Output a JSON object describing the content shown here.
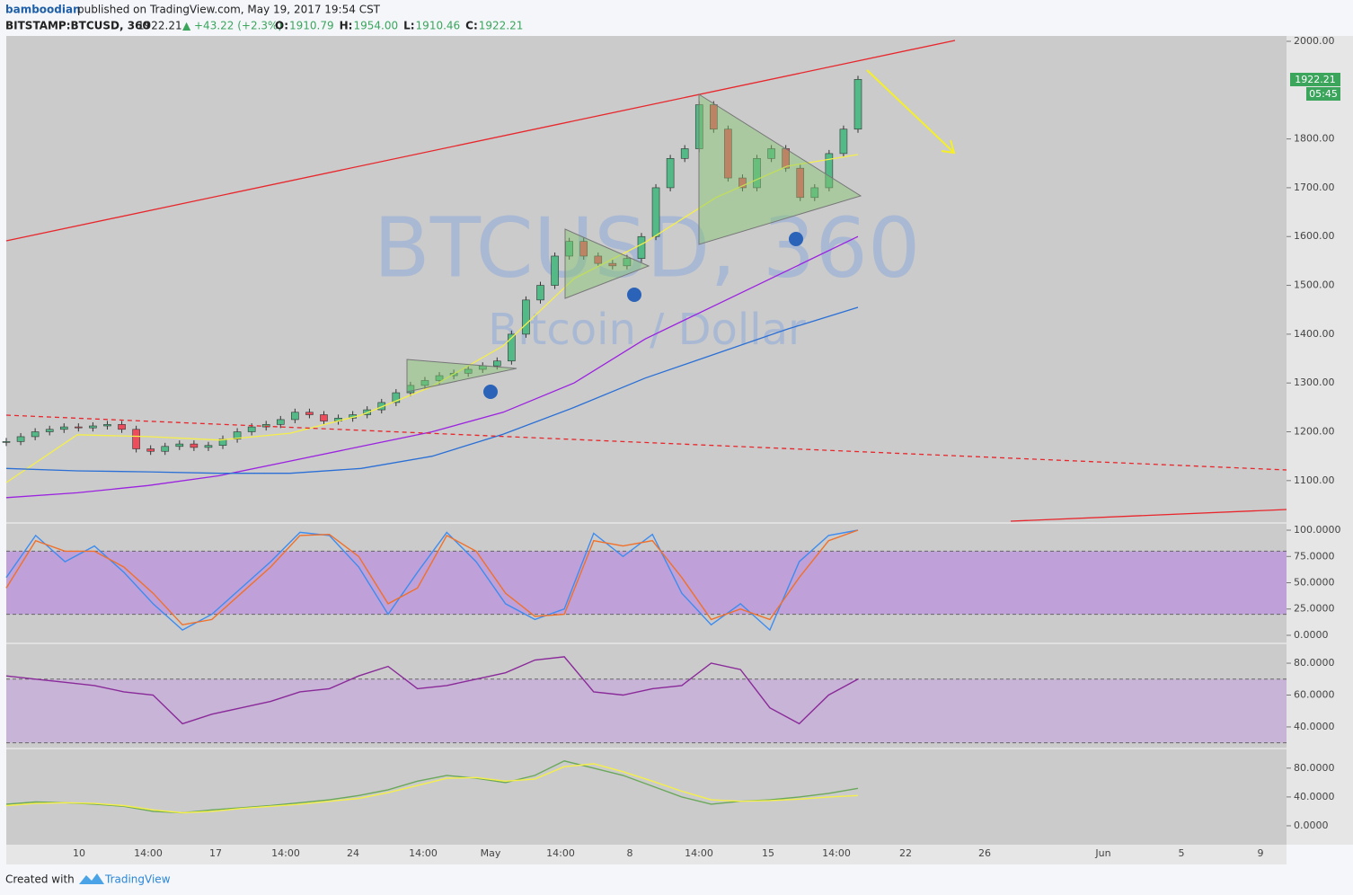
{
  "header": {
    "author": "bamboodian",
    "published": "published on TradingView.com, May 19, 2017 19:54 CST",
    "symbol": "BITSTAMP:BTCUSD, 360",
    "last": "1922.21",
    "arrow": "▲",
    "change": "+43.22 (+2.3%)",
    "ohlc": [
      {
        "label": "O:",
        "value": "1910.79"
      },
      {
        "label": "H:",
        "value": "1954.00"
      },
      {
        "label": "L:",
        "value": "1910.46"
      },
      {
        "label": "C:",
        "value": "1922.21"
      }
    ]
  },
  "watermark": {
    "symbol": "BTCUSD, 360",
    "description": "Bitcoin / Dollar"
  },
  "price_tag": "1922.21",
  "countdown": "05:45",
  "footer": {
    "created": "Created with",
    "brand": "TradingView"
  },
  "chart_data": {
    "type": "candlestick",
    "values": [
      1180,
      1190,
      1200,
      1205,
      1210,
      1208,
      1212,
      1215,
      1205,
      1165,
      1160,
      1170,
      1175,
      1168,
      1172,
      1185,
      1200,
      1210,
      1215,
      1225,
      1240,
      1235,
      1222,
      1228,
      1235,
      1245,
      1260,
      1280,
      1295,
      1305,
      1315,
      1320,
      1328,
      1335,
      1345,
      1400,
      1470,
      1500,
      1560,
      1590,
      1560,
      1545,
      1540,
      1555,
      1600,
      1700,
      1760,
      1780,
      1870,
      1820,
      1720,
      1700,
      1760,
      1780,
      1740,
      1680,
      1700,
      1770,
      1820,
      1922
    ],
    "color_up": "#53b987",
    "color_down": "#eb4d5c",
    "ylim": [
      1015,
      2011
    ],
    "yticks": [
      {
        "value": 1100,
        "label": "1100.00"
      },
      {
        "value": 1200,
        "label": "1200.00"
      },
      {
        "value": 1300,
        "label": "1300.00"
      },
      {
        "value": 1400,
        "label": "1400.00"
      },
      {
        "value": 1500,
        "label": "1500.00"
      },
      {
        "value": 1600,
        "label": "1600.00"
      },
      {
        "value": 1700,
        "label": "1700.00"
      },
      {
        "value": 1800,
        "label": "1800.00"
      },
      {
        "value": 2000,
        "label": "2000.00"
      }
    ],
    "xticks": [
      "10",
      "14:00",
      "17",
      "14:00",
      "24",
      "14:00",
      "May",
      "14:00",
      "8",
      "14:00",
      "15",
      "14:00",
      "22",
      "26",
      "Jun",
      "5",
      "9"
    ],
    "series": [
      {
        "color": "#f5ef4a",
        "values": [
          1096,
          1194,
          1190,
          1183,
          1197,
          1234,
          1293,
          1376,
          1514,
          1588,
          1680,
          1744,
          1768
        ]
      },
      {
        "color": "#9b22e0",
        "values": [
          1065,
          1075,
          1090,
          1110,
          1140,
          1170,
          1200,
          1240,
          1300,
          1390,
          1460,
          1530,
          1600
        ]
      },
      {
        "color": "#2a6fd6",
        "values": [
          1125,
          1120,
          1118,
          1115,
          1115,
          1125,
          1150,
          1195,
          1250,
          1310,
          1360,
          1410,
          1455
        ]
      }
    ],
    "panels": [
      {
        "ylim": [
          -7.7,
          106
        ],
        "band": [
          20,
          80
        ],
        "band_color": "#c0a0d8",
        "yticks": [
          {
            "value": 100,
            "label": "100.0000"
          },
          {
            "value": 75,
            "label": "75.0000"
          },
          {
            "value": 50,
            "label": "50.0000"
          },
          {
            "value": 25,
            "label": "25.0000"
          },
          {
            "value": 0,
            "label": "0.0000"
          }
        ],
        "series": [
          {
            "color": "#3d8cf0",
            "values": [
              55,
              95,
              70,
              85,
              60,
              30,
              5,
              20,
              45,
              70,
              98,
              95,
              65,
              20,
              60,
              98,
              70,
              30,
              15,
              25,
              97,
              75,
              96,
              40,
              10,
              30,
              5,
              70,
              95,
              100
            ]
          },
          {
            "color": "#f0702a",
            "values": [
              45,
              90,
              80,
              80,
              65,
              40,
              10,
              15,
              40,
              65,
              95,
              96,
              75,
              30,
              45,
              95,
              80,
              40,
              18,
              20,
              90,
              85,
              90,
              55,
              15,
              25,
              15,
              55,
              90,
              100
            ]
          }
        ]
      },
      {
        "ylim": [
          27,
          91.3
        ],
        "band": [
          30,
          70
        ],
        "band_color": "#c8b4d6",
        "yticks": [
          {
            "value": 80,
            "label": "80.0000"
          },
          {
            "value": 60,
            "label": "60.0000"
          },
          {
            "value": 40,
            "label": "40.0000"
          }
        ],
        "series": [
          {
            "color": "#8a2a9a",
            "values": [
              72,
              70,
              68,
              66,
              62,
              60,
              42,
              48,
              52,
              56,
              62,
              64,
              72,
              78,
              64,
              66,
              70,
              74,
              82,
              84,
              62,
              60,
              64,
              66,
              80,
              76,
              52,
              42,
              60,
              70
            ]
          }
        ]
      },
      {
        "ylim": [
          -23.75,
          106
        ],
        "yticks": [
          {
            "value": 80,
            "label": "80.0000"
          },
          {
            "value": 40,
            "label": "40.0000"
          },
          {
            "value": 0,
            "label": "0.0000"
          }
        ],
        "series": [
          {
            "color": "#6aa85a",
            "values": [
              30,
              33,
              32,
              30,
              27,
              20,
              18,
              22,
              25,
              28,
              32,
              36,
              42,
              50,
              62,
              70,
              66,
              60,
              70,
              90,
              80,
              70,
              55,
              40,
              30,
              34,
              36,
              40,
              45,
              52
            ]
          },
          {
            "color": "#f5ef4a",
            "values": [
              28,
              31,
              32,
              31,
              28,
              22,
              18,
              20,
              24,
              27,
              30,
              34,
              38,
              46,
              56,
              66,
              67,
              62,
              65,
              82,
              86,
              75,
              62,
              48,
              36,
              34,
              35,
              37,
              40,
              42
            ]
          }
        ]
      }
    ]
  }
}
